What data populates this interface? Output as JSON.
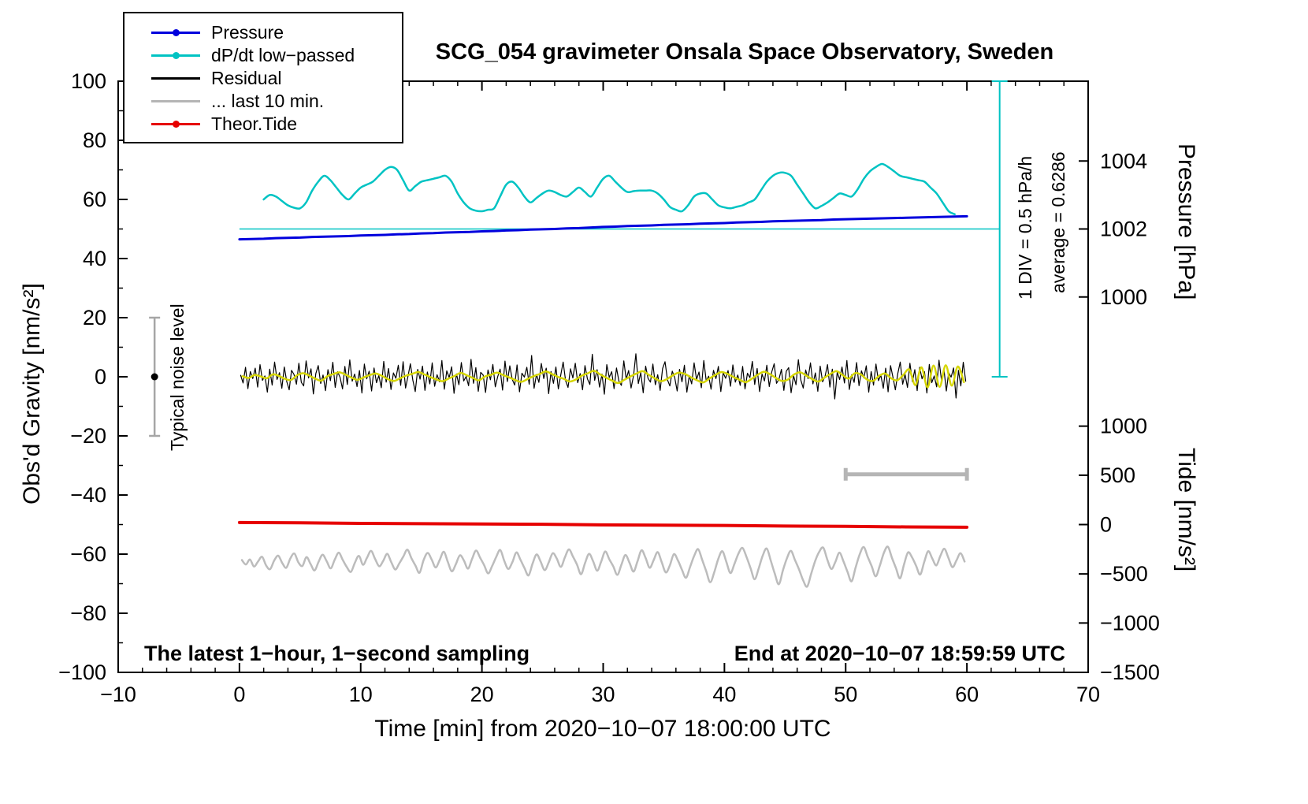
{
  "chart_data": {
    "type": "line",
    "title": "SCG_054 gravimeter Onsala Space Observatory, Sweden",
    "xlabel": "Time [min] from 2020−10−07 18:00:00 UTC",
    "ylabel": "Obs'd Gravity [nm/s²]",
    "xlim": [
      -10,
      70
    ],
    "ylim": [
      -100,
      100
    ],
    "x_ticks": [
      -10,
      0,
      10,
      20,
      30,
      40,
      50,
      60,
      70
    ],
    "y_ticks": [
      -100,
      -80,
      -60,
      -40,
      -20,
      0,
      20,
      40,
      60,
      80,
      100
    ],
    "grid": false,
    "y2_pressure": {
      "label": "Pressure [hPa]",
      "ticks": [
        {
          "v": 1004,
          "g": 73
        },
        {
          "v": 1002,
          "g": 50
        },
        {
          "v": 1000,
          "g": 27
        }
      ]
    },
    "y2_tide": {
      "label": "Tide [nm/s²]",
      "ticks": [
        {
          "v": 1000,
          "g": -16.7
        },
        {
          "v": 500,
          "g": -33.3
        },
        {
          "v": 0,
          "g": -50
        },
        {
          "v": -500,
          "g": -66.7
        },
        {
          "v": -1000,
          "g": -83.3
        },
        {
          "v": -1500,
          "g": -100
        }
      ]
    },
    "annotations": {
      "sampling_note": "The latest 1−hour, 1−second sampling",
      "end_note": "End at 2020−10−07 18:59:59 UTC",
      "div_note": "1 DIV = 0.5 hPa/h",
      "average_note": "average = 0.6286",
      "noise_label": "Typical noise level"
    },
    "legend": {
      "position": "top-left",
      "items": [
        {
          "label": "Pressure",
          "color": "#0000dd",
          "dot": true
        },
        {
          "label": "dP/dt low−passed",
          "color": "#00c3c3",
          "dot": true
        },
        {
          "label": "Residual",
          "color": "#000000",
          "dot": false
        },
        {
          "label": "... last 10 min.",
          "color": "#b5b5b5",
          "dot": false
        },
        {
          "label": "Theor.Tide",
          "color": "#e60000",
          "dot": true
        }
      ]
    },
    "reference": {
      "cyan_line_y": 50,
      "cyan_line_x": [
        0,
        62.7
      ],
      "bracket_x": 62.7,
      "bracket_y": [
        0,
        100
      ],
      "noise_bar": {
        "x": -7,
        "y": [
          -20,
          20
        ],
        "dot_y": 0
      },
      "scale_bar": {
        "y": -33,
        "x": [
          50,
          60
        ]
      }
    },
    "series": [
      {
        "name": "... last 10 min.",
        "data_name": "last-10-min-series-line",
        "color": "#bcbcbc",
        "width": 2.5,
        "smooth": true,
        "x_start": 0.2,
        "x_step": 0.333,
        "values": [
          -62.0,
          -63.5,
          -61.8,
          -64.2,
          -62.5,
          -60.9,
          -63.8,
          -65.1,
          -62.2,
          -60.5,
          -63.0,
          -64.6,
          -61.5,
          -59.8,
          -62.8,
          -64.0,
          -61.0,
          -63.3,
          -65.5,
          -62.6,
          -60.2,
          -62.4,
          -64.8,
          -61.9,
          -59.5,
          -62.0,
          -64.4,
          -66.0,
          -62.9,
          -60.6,
          -63.6,
          -61.2,
          -58.9,
          -61.6,
          -64.1,
          -62.3,
          -59.9,
          -62.7,
          -65.2,
          -63.1,
          -60.8,
          -58.5,
          -61.4,
          -63.9,
          -66.3,
          -62.1,
          -59.6,
          -61.8,
          -64.5,
          -62.0,
          -59.2,
          -62.6,
          -65.8,
          -63.4,
          -60.4,
          -62.2,
          -64.9,
          -61.7,
          -58.8,
          -61.2,
          -63.7,
          -66.5,
          -64.0,
          -60.9,
          -58.6,
          -62.3,
          -65.0,
          -62.7,
          -59.4,
          -61.9,
          -64.7,
          -67.2,
          -63.2,
          -60.1,
          -62.5,
          -65.4,
          -62.8,
          -59.7,
          -61.5,
          -64.3,
          -61.1,
          -58.4,
          -60.8,
          -63.5,
          -66.8,
          -63.0,
          -59.9,
          -62.4,
          -65.6,
          -62.5,
          -59.1,
          -61.7,
          -64.2,
          -67.0,
          -63.6,
          -60.3,
          -62.9,
          -65.9,
          -62.4,
          -58.7,
          -61.3,
          -64.6,
          -62.0,
          -59.3,
          -62.8,
          -66.2,
          -63.8,
          -60.0,
          -62.1,
          -65.3,
          -68.0,
          -64.4,
          -60.7,
          -58.3,
          -61.9,
          -65.7,
          -69.5,
          -66.1,
          -61.6,
          -59.0,
          -62.6,
          -66.4,
          -63.3,
          -59.8,
          -57.9,
          -61.0,
          -64.8,
          -68.5,
          -64.9,
          -60.5,
          -58.1,
          -62.2,
          -66.6,
          -70.2,
          -65.5,
          -61.4,
          -58.9,
          -62.0,
          -65.2,
          -68.8,
          -71.0,
          -66.7,
          -62.3,
          -59.2,
          -57.8,
          -61.8,
          -65.0,
          -62.6,
          -59.5,
          -62.4,
          -66.0,
          -69.2,
          -64.6,
          -60.2,
          -57.6,
          -60.9,
          -64.1,
          -67.5,
          -63.9,
          -59.6,
          -57.5,
          -61.2,
          -64.7,
          -68.2,
          -63.5,
          -59.4,
          -61.1,
          -64.0,
          -66.9,
          -62.7,
          -59.0,
          -61.5,
          -63.8,
          -60.6,
          -58.2,
          -61.3,
          -64.4,
          -62.1,
          -59.7,
          -62.5
        ]
      },
      {
        "name": "Theor.Tide",
        "data_name": "theor-tide-series-line",
        "color": "#e60000",
        "width": 4,
        "smooth": false,
        "x_start": 0,
        "x_step": 5,
        "values": [
          -49.3,
          -49.4,
          -49.6,
          -49.7,
          -49.8,
          -49.9,
          -50.1,
          -50.2,
          -50.3,
          -50.5,
          -50.6,
          -50.8,
          -50.9
        ]
      },
      {
        "name": "Residual",
        "data_name": "residual-series-line",
        "color": "#000000",
        "width": 1.2,
        "smooth": false,
        "x_start": 0.1,
        "x_step": 0.2,
        "values": [
          0.5,
          -2.1,
          3.2,
          -4.0,
          1.8,
          -0.6,
          2.9,
          -3.5,
          4.1,
          -1.2,
          0.3,
          -5.2,
          2.6,
          -2.8,
          5.0,
          -0.9,
          1.4,
          -3.9,
          3.3,
          -1.6,
          -4.4,
          2.2,
          0.8,
          -2.5,
          4.6,
          -1.9,
          -3.1,
          5.4,
          -0.4,
          2.7,
          -5.8,
          1.1,
          3.8,
          -2.3,
          0.6,
          -4.7,
          2.4,
          -1.3,
          4.9,
          -3.6,
          1.7,
          -0.2,
          -4.1,
          3.5,
          -2.6,
          5.7,
          -1.5,
          0.9,
          -3.3,
          2.1,
          -5.5,
          4.3,
          -0.7,
          1.9,
          -4.8,
          3.0,
          -2.0,
          0.4,
          -3.7,
          5.2,
          -1.8,
          2.8,
          -4.3,
          1.3,
          -0.5,
          3.9,
          -2.9,
          5.1,
          -3.8,
          0.2,
          4.4,
          -1.1,
          -5.0,
          2.5,
          -0.8,
          3.6,
          -4.6,
          1.6,
          -2.4,
          4.7,
          -3.2,
          0.7,
          -1.7,
          5.5,
          -4.2,
          2.0,
          -0.3,
          3.4,
          -5.6,
          1.0,
          -2.7,
          4.8,
          -1.4,
          0.1,
          -3.0,
          5.9,
          -2.2,
          3.1,
          -4.9,
          1.5,
          0.6,
          -5.3,
          2.3,
          -1.0,
          4.2,
          -3.4,
          0.0,
          2.6,
          -4.5,
          5.3,
          -1.6,
          3.7,
          -0.9,
          -2.8,
          4.0,
          -5.1,
          1.2,
          -0.1,
          3.2,
          -2.5,
          7.2,
          -3.9,
          0.8,
          -1.9,
          4.5,
          -0.6,
          2.9,
          -5.7,
          1.8,
          -2.2,
          3.3,
          -4.1,
          0.5,
          5.0,
          -1.3,
          -3.6,
          2.7,
          -0.4,
          4.6,
          -2.0,
          1.1,
          -4.4,
          3.8,
          -0.7,
          -2.6,
          7.6,
          -1.2,
          2.4,
          -3.5,
          0.9,
          -5.9,
          4.1,
          -0.2,
          1.7,
          -4.0,
          3.0,
          -1.5,
          -2.9,
          5.4,
          -0.8,
          2.1,
          -3.8,
          0.3,
          7.8,
          -2.3,
          1.4,
          -5.4,
          3.6,
          -0.5,
          -1.8,
          4.3,
          -2.7,
          0.7,
          -4.6,
          2.8,
          5.1,
          -1.0,
          -3.1,
          1.9,
          -0.3,
          -4.8,
          2.5,
          -1.7,
          3.9,
          -5.2,
          0.4,
          -2.4,
          4.7,
          -0.9,
          1.6,
          -3.7,
          5.5,
          -1.4,
          0.2,
          -4.2,
          2.2,
          -0.6,
          3.5,
          -5.0,
          1.3,
          -0.5,
          2.1,
          -3.2,
          4.0,
          -1.8,
          0.6,
          -2.9,
          3.5,
          -4.1,
          1.2,
          -0.3,
          5.2,
          -2.6,
          2.8,
          -5.0,
          0.9,
          -1.4,
          3.9,
          -3.3,
          1.6,
          4.4,
          -2.2,
          -0.8,
          2.5,
          -4.6,
          1.9,
          3.1,
          -5.4,
          0.4,
          -2.7,
          5.8,
          -1.1,
          -3.8,
          2.3,
          -0.6,
          4.7,
          -2.4,
          1.3,
          -4.9,
          3.6,
          -1.7,
          0.2,
          4.1,
          -3.5,
          2.6,
          -7.5,
          1.5,
          -0.9,
          3.3,
          -2.1,
          5.5,
          -4.3,
          0.7,
          -1.9,
          4.8,
          -3.0,
          2.0,
          -0.4,
          3.7,
          -5.2,
          1.8,
          -2.8,
          4.3,
          -1.3,
          0.5,
          -3.9,
          2.9,
          -5.1,
          3.8,
          -0.2,
          -4.4,
          1.1,
          5.0,
          -2.5,
          0.8,
          -3.6,
          4.6,
          -1.6,
          2.4,
          -4.7,
          3.2,
          -0.7,
          1.7,
          -5.5,
          4.2,
          -2.0,
          0.3,
          -3.4,
          5.6,
          -1.0,
          2.7,
          -4.8,
          1.4,
          -0.1,
          3.0,
          -7.2,
          2.2,
          -3.1,
          4.9,
          -1.5
        ]
      },
      {
        "name": "Residual low-passed",
        "data_name": "residual-lowpass-series-line",
        "color": "#d6d600",
        "width": 2.5,
        "smooth": true,
        "x_start": 0.25,
        "x_step": 0.5,
        "values": [
          0.2,
          -0.4,
          0.6,
          0.1,
          -0.5,
          0.8,
          0.3,
          -0.7,
          -1.1,
          0.5,
          1.2,
          0.4,
          -0.6,
          -1.3,
          0.2,
          0.9,
          1.5,
          0.7,
          -0.3,
          -1.0,
          -0.2,
          0.6,
          1.1,
          0.3,
          -0.8,
          -1.4,
          -0.5,
          0.4,
          1.0,
          1.6,
          0.8,
          -0.1,
          -0.9,
          -1.5,
          -0.6,
          0.3,
          1.3,
          0.5,
          -0.4,
          -1.2,
          0.1,
          0.7,
          1.4,
          0.6,
          -0.2,
          -1.1,
          -1.7,
          -0.8,
          0.2,
          0.9,
          1.8,
          1.0,
          0.0,
          -0.7,
          -1.6,
          -0.9,
          0.4,
          1.2,
          2.0,
          0.8,
          -0.3,
          -1.3,
          -2.1,
          -1.0,
          0.1,
          1.1,
          1.9,
          0.7,
          -0.5,
          -1.5,
          -0.8,
          0.5,
          1.4,
          0.9,
          -0.2,
          -1.2,
          -1.9,
          -0.6,
          0.6,
          1.6,
          1.0,
          -0.1,
          -1.0,
          -1.8,
          -0.7,
          0.7,
          1.7,
          0.9,
          -0.4,
          -1.4,
          -0.9,
          0.8,
          1.5,
          0.4,
          -0.8,
          -1.6,
          -0.3,
          1.0,
          1.9,
          0.6,
          -0.6,
          1.2,
          0.8,
          -0.9,
          -1.4,
          0.3,
          1.1,
          -0.5,
          -1.2,
          0.6,
          2.4,
          -2.8,
          3.2,
          -3.6,
          3.8,
          -3.4,
          3.9,
          -3.0,
          3.5,
          -1.8
        ]
      },
      {
        "name": "Pressure",
        "data_name": "pressure-series-line",
        "color": "#0000dd",
        "width": 3,
        "smooth": false,
        "x_start": 0,
        "x_step": 1,
        "values": [
          46.5,
          46.6,
          46.7,
          46.9,
          47.0,
          47.1,
          47.3,
          47.4,
          47.5,
          47.6,
          47.8,
          47.9,
          48.0,
          48.2,
          48.3,
          48.5,
          48.6,
          48.8,
          48.9,
          49.0,
          49.2,
          49.3,
          49.5,
          49.6,
          49.8,
          49.9,
          50.0,
          50.2,
          50.3,
          50.5,
          50.7,
          50.8,
          51.0,
          51.1,
          51.2,
          51.4,
          51.5,
          51.6,
          51.8,
          51.9,
          52.0,
          52.2,
          52.3,
          52.4,
          52.6,
          52.7,
          52.8,
          52.9,
          53.0,
          53.2,
          53.3,
          53.4,
          53.5,
          53.6,
          53.7,
          53.8,
          53.9,
          54.0,
          54.1,
          54.2,
          54.3
        ]
      },
      {
        "name": "dP/dt low-passed",
        "data_name": "dpdt-series-line",
        "color": "#00c3c3",
        "width": 2.5,
        "smooth": true,
        "x_start": 2,
        "x_step": 0.5,
        "values": [
          60,
          61.5,
          61,
          59.5,
          58,
          57.2,
          57,
          59,
          63,
          66,
          68,
          66.5,
          64,
          61.5,
          60,
          62,
          64,
          65,
          66,
          68,
          70,
          71,
          70,
          66.5,
          63,
          64.5,
          66,
          66.5,
          67,
          67.5,
          68,
          66,
          62,
          59,
          57,
          56.2,
          56,
          56.5,
          57,
          61,
          65,
          66,
          64,
          61,
          59,
          60.5,
          62,
          63,
          62.5,
          61.5,
          61,
          62.5,
          64,
          62.5,
          61,
          64,
          67,
          68,
          66,
          64,
          62.5,
          62.8,
          63,
          63,
          63,
          62,
          60,
          57.5,
          56.5,
          56,
          58,
          61,
          62,
          62,
          60,
          58,
          57.3,
          57,
          57.5,
          58,
          59,
          60,
          63,
          66,
          68,
          69,
          69,
          68,
          65,
          62,
          59,
          57,
          57.8,
          59,
          60.5,
          62,
          61.5,
          61,
          63.5,
          67,
          69.5,
          71,
          72,
          71,
          69.5,
          68,
          67.5,
          67,
          66.5,
          66,
          64,
          62,
          59,
          56,
          55
        ]
      }
    ]
  }
}
